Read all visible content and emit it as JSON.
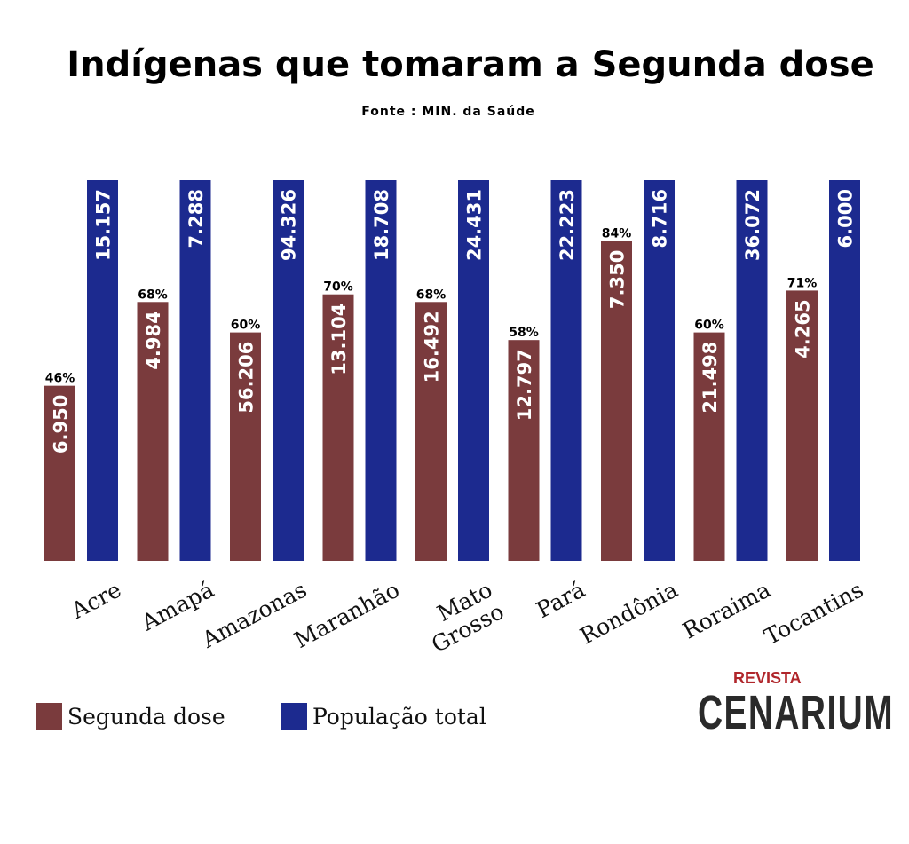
{
  "chart_data": {
    "type": "bar",
    "title": "Indígenas que tomaram a Segunda dose",
    "subtitle": "Fonte : MIN. da Saúde",
    "categories": [
      "Acre",
      "Amapá",
      "Amazonas",
      "Maranhão",
      "Mato Grosso",
      "Pará",
      "Rondônia",
      "Roraima",
      "Tocantins"
    ],
    "series": [
      {
        "name": "Segunda dose",
        "color": "#7a3b3d",
        "values": [
          "6.950",
          "4.984",
          "56.206",
          "13.104",
          "16.492",
          "12.797",
          "7.350",
          "21.498",
          "4.265"
        ],
        "percent": [
          46,
          68,
          60,
          70,
          68,
          58,
          84,
          60,
          71
        ],
        "percent_labels": [
          "46%",
          "68%",
          "60%",
          "70%",
          "68%",
          "58%",
          "84%",
          "60%",
          "71%"
        ]
      },
      {
        "name": "População total",
        "color": "#1c2a8f",
        "values": [
          "15.157",
          "7.288",
          "94.326",
          "18.708",
          "24.431",
          "22.223",
          "8.716",
          "36.072",
          "6.000"
        ]
      }
    ],
    "xlabel": "",
    "ylabel": "",
    "grid": false,
    "legend": "bottom-left"
  },
  "logo": {
    "top": "REVISTA",
    "main": "CENARIUM"
  }
}
